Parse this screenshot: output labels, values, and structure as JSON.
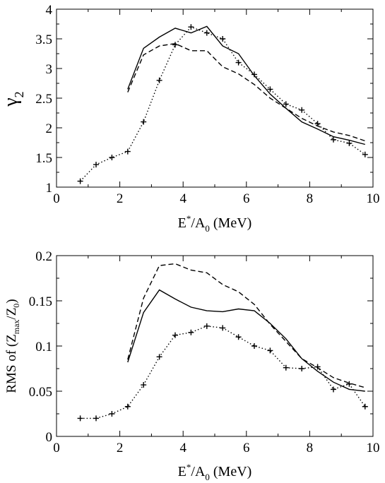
{
  "chart_data": [
    {
      "type": "line",
      "xlabel": {
        "base": "E",
        "sup": "*",
        "mid": "/A",
        "sub": "0",
        "tail": " (MeV)"
      },
      "ylabel": {
        "base": "γ",
        "sub": "2"
      },
      "xlim": [
        0,
        10
      ],
      "ylim": [
        1,
        4
      ],
      "xticks": [
        0,
        2,
        4,
        6,
        8,
        10
      ],
      "yticks": [
        1,
        1.5,
        2,
        2.5,
        3,
        3.5,
        4
      ],
      "xtick_labels": [
        "0",
        "2",
        "4",
        "6",
        "8",
        "10"
      ],
      "ytick_labels": [
        "1",
        "1.5",
        "2",
        "2.5",
        "3",
        "3.5",
        "4"
      ],
      "grid": false,
      "series": [
        {
          "style": "solid",
          "x": [
            2.25,
            2.75,
            3.25,
            3.75,
            4.25,
            4.75,
            5.25,
            5.75,
            6.25,
            6.75,
            7.25,
            7.75,
            8.25,
            8.75,
            9.25,
            9.75
          ],
          "y": [
            2.65,
            3.34,
            3.53,
            3.68,
            3.6,
            3.71,
            3.38,
            3.25,
            2.88,
            2.57,
            2.33,
            2.1,
            1.98,
            1.85,
            1.79,
            1.72
          ]
        },
        {
          "style": "dashed",
          "x": [
            2.25,
            2.75,
            3.25,
            3.75,
            4.25,
            4.75,
            5.25,
            5.75,
            6.25,
            6.75,
            7.25,
            7.75,
            8.25,
            8.75,
            9.25,
            9.75
          ],
          "y": [
            2.6,
            3.23,
            3.38,
            3.42,
            3.3,
            3.3,
            3.03,
            2.91,
            2.73,
            2.5,
            2.33,
            2.16,
            2.03,
            1.93,
            1.87,
            1.78
          ]
        },
        {
          "style": "dotted",
          "markers": "plus",
          "x": [
            0.75,
            1.25,
            1.75,
            2.25,
            2.75,
            3.25,
            3.75,
            4.25,
            4.75,
            5.25,
            5.75,
            6.25,
            6.75,
            7.25,
            7.75,
            8.25,
            8.75,
            9.25,
            9.75
          ],
          "y": [
            1.1,
            1.38,
            1.5,
            1.6,
            2.1,
            2.8,
            3.4,
            3.7,
            3.6,
            3.5,
            3.1,
            2.9,
            2.65,
            2.4,
            2.3,
            2.07,
            1.8,
            1.74,
            1.55
          ]
        }
      ]
    },
    {
      "type": "line",
      "xlabel": {
        "base": "E",
        "sup": "*",
        "mid": "/A",
        "sub": "0",
        "tail": " (MeV)"
      },
      "ylabel": {
        "base": "RMS of (Z",
        "sub1": "max",
        "mid": "/Z",
        "sub2": "0",
        "tail": ")"
      },
      "xlim": [
        0,
        10
      ],
      "ylim": [
        0,
        0.2
      ],
      "xticks": [
        0,
        2,
        4,
        6,
        8,
        10
      ],
      "yticks": [
        0,
        0.05,
        0.1,
        0.15,
        0.2
      ],
      "xtick_labels": [
        "0",
        "2",
        "4",
        "6",
        "8",
        "10"
      ],
      "ytick_labels": [
        "0",
        "0.05",
        "0.1",
        "0.15",
        "0.2"
      ],
      "grid": false,
      "series": [
        {
          "style": "solid",
          "x": [
            2.25,
            2.75,
            3.25,
            3.75,
            4.25,
            4.75,
            5.25,
            5.75,
            6.25,
            6.75,
            7.25,
            7.75,
            8.25,
            8.75,
            9.25,
            9.75
          ],
          "y": [
            0.082,
            0.137,
            0.162,
            0.152,
            0.143,
            0.139,
            0.138,
            0.141,
            0.139,
            0.125,
            0.108,
            0.086,
            0.072,
            0.06,
            0.052,
            0.05
          ]
        },
        {
          "style": "dashed",
          "x": [
            2.25,
            2.75,
            3.25,
            3.75,
            4.25,
            4.75,
            5.25,
            5.75,
            6.25,
            6.75,
            7.25,
            7.75,
            8.25,
            8.75,
            9.25,
            9.75
          ],
          "y": [
            0.085,
            0.153,
            0.189,
            0.191,
            0.184,
            0.181,
            0.168,
            0.16,
            0.146,
            0.124,
            0.105,
            0.086,
            0.076,
            0.065,
            0.059,
            0.054
          ]
        },
        {
          "style": "dotted",
          "markers": "plus",
          "x": [
            0.75,
            1.25,
            1.75,
            2.25,
            2.75,
            3.25,
            3.75,
            4.25,
            4.75,
            5.25,
            5.75,
            6.25,
            6.75,
            7.25,
            7.75,
            8.25,
            8.75,
            9.25,
            9.75
          ],
          "y": [
            0.02,
            0.02,
            0.025,
            0.033,
            0.057,
            0.088,
            0.112,
            0.115,
            0.122,
            0.12,
            0.11,
            0.1,
            0.095,
            0.076,
            0.075,
            0.077,
            0.052,
            0.058,
            0.033
          ]
        }
      ]
    }
  ]
}
